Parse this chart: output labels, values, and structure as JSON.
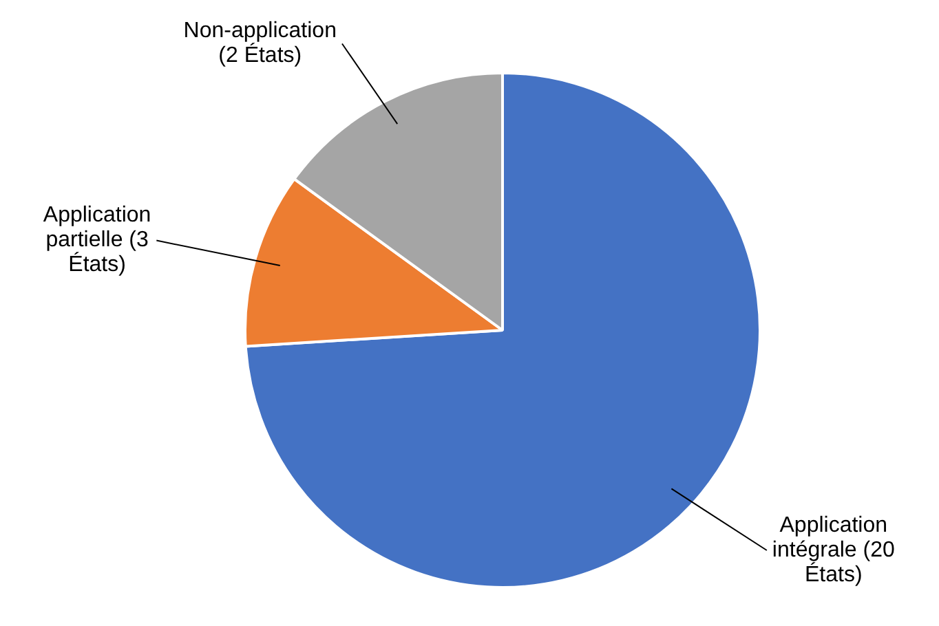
{
  "chart_data": {
    "type": "pie",
    "categories": [
      "Application intégrale (20 États)",
      "Application partielle (3 États)",
      "Non-application (2 États)"
    ],
    "values": [
      74,
      11,
      15
    ],
    "colors": [
      "#4472c4",
      "#ed7d31",
      "#a5a5a5"
    ],
    "legend": false
  }
}
